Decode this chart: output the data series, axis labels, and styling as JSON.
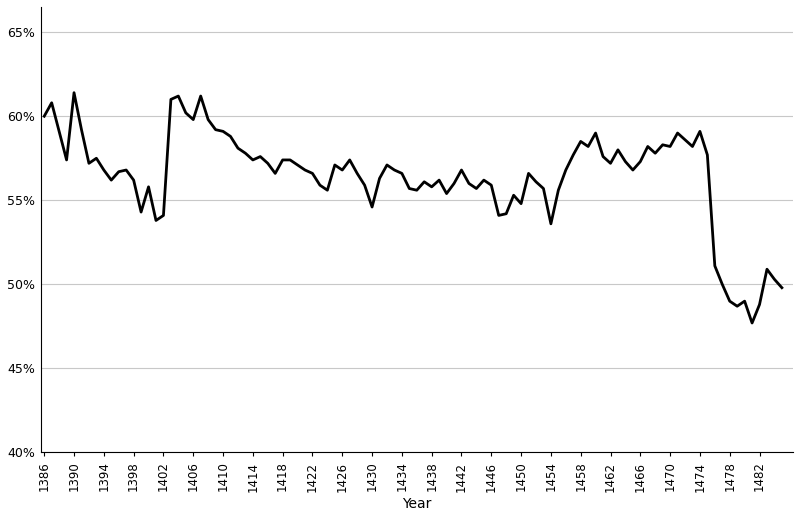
{
  "years": [
    1386,
    1387,
    1388,
    1389,
    1390,
    1391,
    1392,
    1393,
    1394,
    1395,
    1396,
    1397,
    1398,
    1399,
    1400,
    1401,
    1402,
    1403,
    1404,
    1405,
    1406,
    1407,
    1408,
    1409,
    1410,
    1411,
    1412,
    1413,
    1414,
    1415,
    1416,
    1417,
    1418,
    1419,
    1420,
    1421,
    1422,
    1423,
    1424,
    1425,
    1426,
    1427,
    1428,
    1429,
    1430,
    1431,
    1432,
    1433,
    1434,
    1435,
    1436,
    1437,
    1438,
    1439,
    1440,
    1441,
    1442,
    1443,
    1444,
    1445,
    1446,
    1447,
    1448,
    1449,
    1450,
    1451,
    1452,
    1453,
    1454,
    1455,
    1456,
    1457,
    1458,
    1459,
    1460,
    1461,
    1462,
    1463,
    1464,
    1465,
    1466,
    1467,
    1468,
    1469,
    1470,
    1471,
    1472,
    1473,
    1474,
    1475,
    1476,
    1477,
    1478,
    1479,
    1480,
    1481,
    1482,
    1483,
    1484,
    1485
  ],
  "values": [
    0.6,
    0.608,
    0.591,
    0.574,
    0.614,
    0.592,
    0.572,
    0.575,
    0.568,
    0.562,
    0.567,
    0.568,
    0.562,
    0.543,
    0.558,
    0.538,
    0.541,
    0.61,
    0.612,
    0.602,
    0.598,
    0.612,
    0.598,
    0.592,
    0.591,
    0.588,
    0.581,
    0.578,
    0.574,
    0.576,
    0.572,
    0.566,
    0.574,
    0.574,
    0.571,
    0.568,
    0.566,
    0.559,
    0.556,
    0.571,
    0.568,
    0.574,
    0.566,
    0.559,
    0.546,
    0.563,
    0.571,
    0.568,
    0.566,
    0.557,
    0.556,
    0.561,
    0.558,
    0.562,
    0.554,
    0.56,
    0.568,
    0.56,
    0.557,
    0.562,
    0.559,
    0.541,
    0.542,
    0.553,
    0.548,
    0.566,
    0.561,
    0.557,
    0.536,
    0.556,
    0.568,
    0.577,
    0.585,
    0.582,
    0.59,
    0.576,
    0.572,
    0.58,
    0.573,
    0.568,
    0.573,
    0.582,
    0.578,
    0.583,
    0.582,
    0.59,
    0.586,
    0.582,
    0.591,
    0.577,
    0.511,
    0.5,
    0.49,
    0.487,
    0.49,
    0.477,
    0.488,
    0.509,
    0.503,
    0.498
  ],
  "xtick_start": 1386,
  "xtick_end": 1485,
  "xtick_step": 4,
  "ytick_values": [
    0.4,
    0.45,
    0.5,
    0.55,
    0.6,
    0.65
  ],
  "ytick_labels": [
    "40%",
    "45%",
    "50%",
    "55%",
    "60%",
    "65%"
  ],
  "ylim": [
    0.4,
    0.665
  ],
  "xlim": [
    1385.5,
    1486.5
  ],
  "xlabel": "Year",
  "line_color": "#000000",
  "line_width": 2.0,
  "background_color": "#ffffff",
  "grid_color": "#c8c8c8"
}
